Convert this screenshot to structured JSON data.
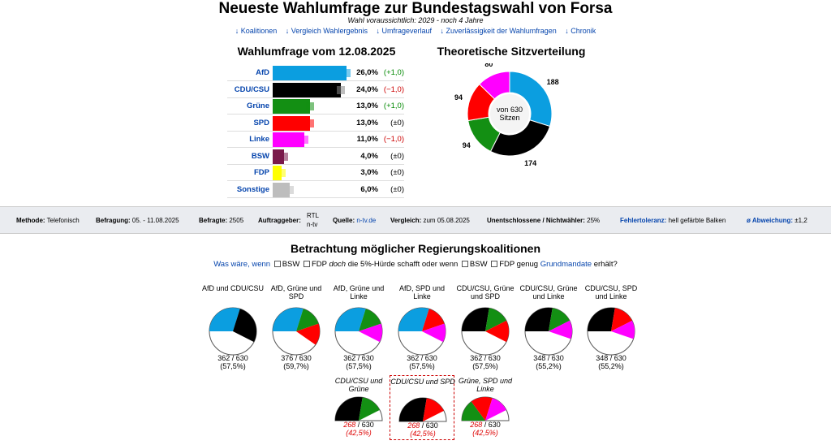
{
  "title": "Neueste Wahlumfrage zur Bundestagswahl von Forsa",
  "subtitle": "Wahl voraussichtlich: 2029 - noch 4 Jahre",
  "nav": [
    "↓ Koalitionen",
    "↓ Vergleich Wahlergebnis",
    "↓ Umfrageverlauf",
    "↓ Zuverlässigkeit der Wahlumfragen",
    "↓ Chronik"
  ],
  "poll_title": "Wahlumfrage vom 12.08.2025",
  "seats_title": "Theoretische Sitzverteilung",
  "parties": [
    {
      "name": "AfD",
      "value": 26.0,
      "value_text": "26,0%",
      "change": "(+1,0)",
      "change_color": "#080",
      "color": "#0b9ee0"
    },
    {
      "name": "CDU/CSU",
      "value": 24.0,
      "value_text": "24,0%",
      "change": "(−1,0)",
      "change_color": "#c00",
      "color": "#000000"
    },
    {
      "name": "Grüne",
      "value": 13.0,
      "value_text": "13,0%",
      "change": "(+1,0)",
      "change_color": "#080",
      "color": "#138f13"
    },
    {
      "name": "SPD",
      "value": 13.0,
      "value_text": "13,0%",
      "change": "(±0)",
      "change_color": "#000",
      "color": "#f00"
    },
    {
      "name": "Linke",
      "value": 11.0,
      "value_text": "11,0%",
      "change": "(−1,0)",
      "change_color": "#c00",
      "color": "#f0f"
    },
    {
      "name": "BSW",
      "value": 4.0,
      "value_text": "4,0%",
      "change": "(±0)",
      "change_color": "#000",
      "color": "#7a1a4a"
    },
    {
      "name": "FDP",
      "value": 3.0,
      "value_text": "3,0%",
      "change": "(±0)",
      "change_color": "#000",
      "color": "#ffff00"
    },
    {
      "name": "Sonstige",
      "value": 6.0,
      "value_text": "6,0%",
      "change": "(±0)",
      "change_color": "#000",
      "color": "#bdbdbd"
    }
  ],
  "seats": {
    "center_line1": "von 630",
    "center_line2": "Sitzen",
    "slices": [
      {
        "party": "AfD",
        "seats": 188,
        "color": "#0b9ee0"
      },
      {
        "party": "CDU/CSU",
        "seats": 174,
        "color": "#000000"
      },
      {
        "party": "Grüne",
        "seats": 94,
        "color": "#138f13"
      },
      {
        "party": "SPD",
        "seats": 94,
        "color": "#f00"
      },
      {
        "party": "Linke",
        "seats": 80,
        "color": "#f0f"
      }
    ]
  },
  "info": {
    "methode_label": "Methode:",
    "methode": "Telefonisch",
    "befragung_label": "Befragung:",
    "befragung": "05. - 11.08.2025",
    "befragte_label": "Befragte:",
    "befragte": "2505",
    "auftrag_label": "Auftraggeber:",
    "auftrag1": "RTL",
    "auftrag2": "n-tv",
    "quelle_label": "Quelle:",
    "quelle": "n-tv.de",
    "vergleich_label": "Vergleich:",
    "vergleich": "zum 05.08.2025",
    "unent_label": "Unentschlossene / Nichtwähler:",
    "unent": "25%",
    "fehler_label": "Fehlertoleranz:",
    "fehler": "hell gefärbte Balken",
    "abw_label": "ø Abweichung:",
    "abw": "±1,2"
  },
  "coal_title": "Betrachtung möglicher Regierungskoalitionen",
  "coal_question": {
    "was": "Was wäre, wenn",
    "bsw": "BSW",
    "mid": "FDP",
    "doch": "doch",
    "rest": "die 5%-Hürde schafft oder wenn",
    "bsw2": "BSW",
    "fdp2": "FDP genug",
    "grund": "Grundmandate",
    "end": "erhält?"
  },
  "coalitions": [
    {
      "name": "AfD und CDU/CSU",
      "seats": "362",
      "total": "630",
      "pct": "(57,5%)",
      "parts": [
        [
          188,
          "#0b9ee0"
        ],
        [
          174,
          "#000"
        ]
      ],
      "majority": true
    },
    {
      "name": "AfD, Grüne und SPD",
      "seats": "376",
      "total": "630",
      "pct": "(59,7%)",
      "parts": [
        [
          188,
          "#0b9ee0"
        ],
        [
          94,
          "#138f13"
        ],
        [
          94,
          "#f00"
        ]
      ],
      "majority": true
    },
    {
      "name": "AfD, Grüne und Linke",
      "seats": "362",
      "total": "630",
      "pct": "(57,5%)",
      "parts": [
        [
          188,
          "#0b9ee0"
        ],
        [
          94,
          "#138f13"
        ],
        [
          80,
          "#f0f"
        ]
      ],
      "majority": true
    },
    {
      "name": "AfD, SPD und Linke",
      "seats": "362",
      "total": "630",
      "pct": "(57,5%)",
      "parts": [
        [
          188,
          "#0b9ee0"
        ],
        [
          94,
          "#f00"
        ],
        [
          80,
          "#f0f"
        ]
      ],
      "majority": true
    },
    {
      "name": "CDU/CSU, Grüne und SPD",
      "seats": "362",
      "total": "630",
      "pct": "(57,5%)",
      "parts": [
        [
          174,
          "#000"
        ],
        [
          94,
          "#138f13"
        ],
        [
          94,
          "#f00"
        ]
      ],
      "majority": true
    },
    {
      "name": "CDU/CSU, Grüne und Linke",
      "seats": "348",
      "total": "630",
      "pct": "(55,2%)",
      "parts": [
        [
          174,
          "#000"
        ],
        [
          94,
          "#138f13"
        ],
        [
          80,
          "#f0f"
        ]
      ],
      "majority": true
    },
    {
      "name": "CDU/CSU, SPD und Linke",
      "seats": "348",
      "total": "630",
      "pct": "(55,2%)",
      "parts": [
        [
          174,
          "#000"
        ],
        [
          94,
          "#f00"
        ],
        [
          80,
          "#f0f"
        ]
      ],
      "majority": true
    },
    {
      "name": "CDU/CSU und Grüne",
      "seats": "268",
      "total": "630",
      "pct": "(42,5%)",
      "parts": [
        [
          174,
          "#000"
        ],
        [
          94,
          "#138f13"
        ]
      ],
      "majority": false
    },
    {
      "name": "CDU/CSU und SPD",
      "seats": "268",
      "total": "630",
      "pct": "(42,5%)",
      "parts": [
        [
          174,
          "#000"
        ],
        [
          94,
          "#f00"
        ]
      ],
      "majority": false
    },
    {
      "name": "Grüne, SPD und Linke",
      "seats": "268",
      "total": "630",
      "pct": "(42,5%)",
      "parts": [
        [
          94,
          "#138f13"
        ],
        [
          94,
          "#f00"
        ],
        [
          80,
          "#f0f"
        ]
      ],
      "majority": false
    }
  ]
}
